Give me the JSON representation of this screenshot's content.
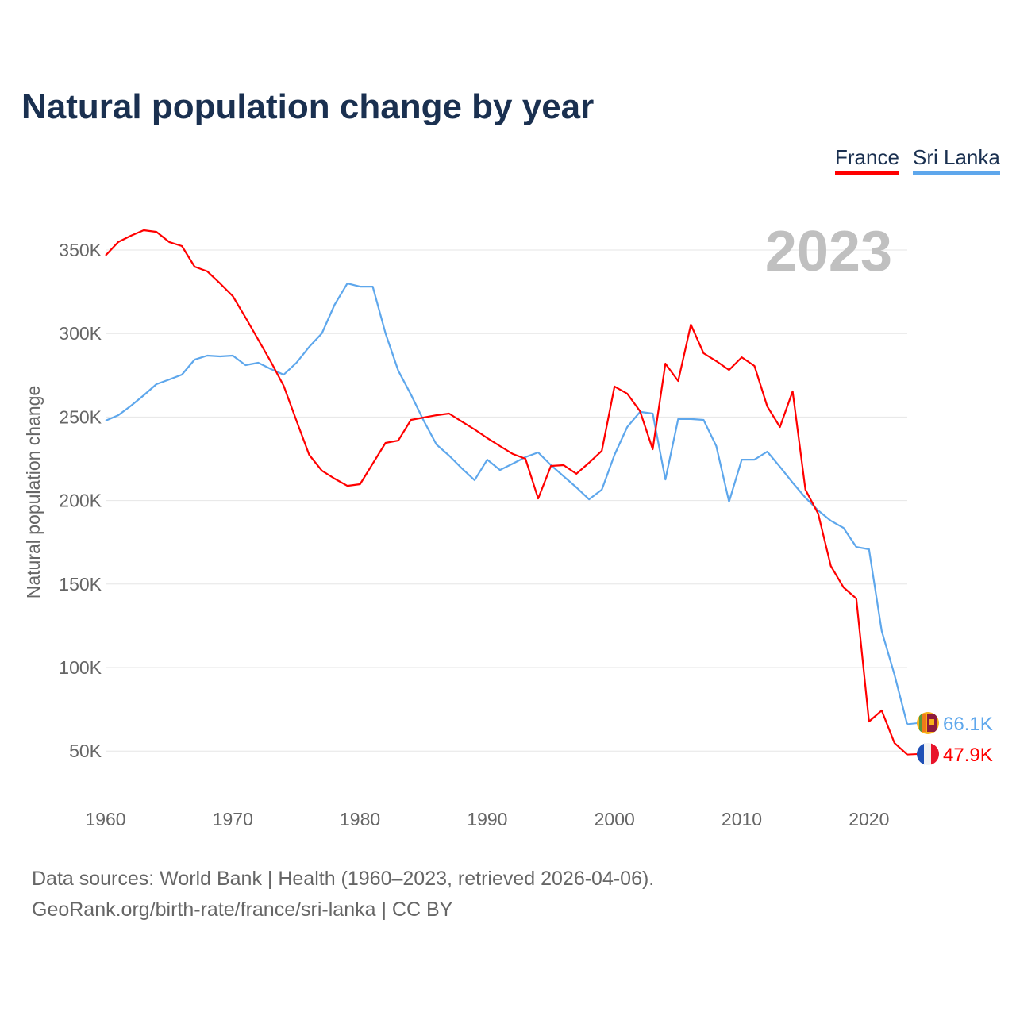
{
  "chart_data": {
    "type": "line",
    "title": "Natural population change by year",
    "ylabel": "Natural population change",
    "xlabel": "",
    "year_label": "2023",
    "xlim": [
      1960,
      2023
    ],
    "ylim": [
      30000,
      370000
    ],
    "x_ticks": [
      1960,
      1970,
      1980,
      1990,
      2000,
      2010,
      2020
    ],
    "y_ticks": [
      50000,
      100000,
      150000,
      200000,
      250000,
      300000,
      350000
    ],
    "y_tick_labels": [
      "50K",
      "100K",
      "150K",
      "200K",
      "250K",
      "300K",
      "350K"
    ],
    "grid": true,
    "legend_position": "top-right",
    "x": [
      1960,
      1961,
      1962,
      1963,
      1964,
      1965,
      1966,
      1967,
      1968,
      1969,
      1970,
      1971,
      1972,
      1973,
      1974,
      1975,
      1976,
      1977,
      1978,
      1979,
      1980,
      1981,
      1982,
      1983,
      1984,
      1985,
      1986,
      1987,
      1988,
      1989,
      1990,
      1991,
      1992,
      1993,
      1994,
      1995,
      1996,
      1997,
      1998,
      1999,
      2000,
      2001,
      2002,
      2003,
      2004,
      2005,
      2006,
      2007,
      2008,
      2009,
      2010,
      2011,
      2012,
      2013,
      2014,
      2015,
      2016,
      2017,
      2018,
      2019,
      2020,
      2021,
      2022,
      2023
    ],
    "series": [
      {
        "name": "France",
        "color": "#ff0000",
        "end_label": "47.9K",
        "values": [
          346.7,
          354.8,
          358.6,
          361.9,
          360.9,
          354.8,
          352.4,
          340,
          337.2,
          330,
          322.4,
          309.6,
          296.3,
          283,
          268.7,
          247.8,
          227.4,
          217.9,
          213.1,
          208.8,
          209.8,
          222.1,
          234.5,
          235.9,
          248.3,
          249.7,
          251.1,
          252.1,
          247.3,
          242.6,
          237.4,
          232.6,
          227.9,
          225,
          201.2,
          220.7,
          221.2,
          216,
          222.6,
          229.8,
          268.3,
          264,
          253.5,
          230.7,
          282,
          271.6,
          305.3,
          288.2,
          283.5,
          278.2,
          285.8,
          280.6,
          256.4,
          244,
          265.4,
          206.5,
          192.2,
          160.8,
          148,
          141.3,
          67.7,
          74.3,
          54.8,
          47.9
        ]
      },
      {
        "name": "Sri Lanka",
        "color": "#5ea7ec",
        "end_label": "66.1K",
        "values": [
          247.8,
          251.1,
          256.8,
          263,
          269.7,
          272.5,
          275.4,
          284.4,
          286.8,
          286.3,
          286.8,
          281.1,
          282.5,
          278.7,
          275.4,
          282.5,
          292,
          300.1,
          317.2,
          330,
          328.1,
          328.1,
          300.1,
          277.8,
          263.5,
          247.8,
          233.6,
          226.9,
          219.3,
          212.2,
          224.5,
          218.3,
          222.1,
          226,
          228.8,
          221.2,
          214.5,
          207.9,
          200.7,
          206.5,
          227.4,
          244,
          253.1,
          252.1,
          212.6,
          248.8,
          248.8,
          248.3,
          232.6,
          199.3,
          224.5,
          224.5,
          229.3,
          220.2,
          210.7,
          201.7,
          194.1,
          187.9,
          183.6,
          172.2,
          170.8,
          121.9,
          95.7,
          66.1
        ]
      }
    ],
    "value_unit": "thousands"
  },
  "footer": {
    "line1": "Data sources: World Bank | Health (1960–2023, retrieved 2026-04-06).",
    "line2": "GeoRank.org/birth-rate/france/sri-lanka | CC BY"
  }
}
